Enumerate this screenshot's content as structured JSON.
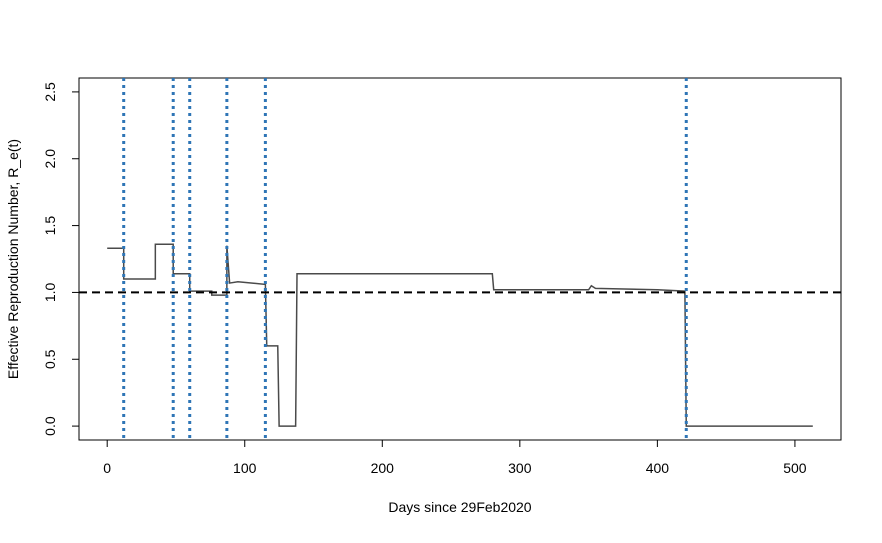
{
  "chart_data": {
    "type": "line",
    "x_label": "Days since 29Feb2020",
    "y_label": "Effective Reproduction Number, R_e(t)",
    "x": [
      0,
      12,
      12,
      35,
      35,
      48,
      48,
      60,
      60,
      76,
      76,
      87,
      87,
      89,
      95,
      115,
      116,
      124,
      125,
      137,
      138,
      280,
      281,
      350,
      352,
      355,
      400,
      420,
      421,
      513
    ],
    "series": [
      {
        "color": "#4a4a4a",
        "values": [
          1.33,
          1.33,
          1.1,
          1.1,
          1.36,
          1.36,
          1.14,
          1.14,
          1.01,
          1.01,
          0.98,
          0.98,
          1.35,
          1.07,
          1.08,
          1.06,
          0.6,
          0.6,
          0.0,
          0.0,
          1.14,
          1.14,
          1.02,
          1.02,
          1.05,
          1.03,
          1.02,
          1.01,
          0.0,
          0.0
        ]
      }
    ],
    "vlines": [
      12,
      48,
      60,
      87,
      115,
      421
    ],
    "vline_color": "#2e75b6",
    "hline": 1.0,
    "hline_color": "#000000",
    "xlim": [
      -20.5,
      533.5
    ],
    "xticks": [
      0,
      100,
      200,
      300,
      400,
      500
    ],
    "ylim": [
      -0.104,
      2.604
    ],
    "yticks": [
      {
        "value": 0,
        "label": "0.0"
      },
      0.5,
      {
        "value": 1,
        "label": "1.0"
      },
      1.5,
      {
        "value": 2,
        "label": "2.0"
      },
      2.5
    ]
  }
}
